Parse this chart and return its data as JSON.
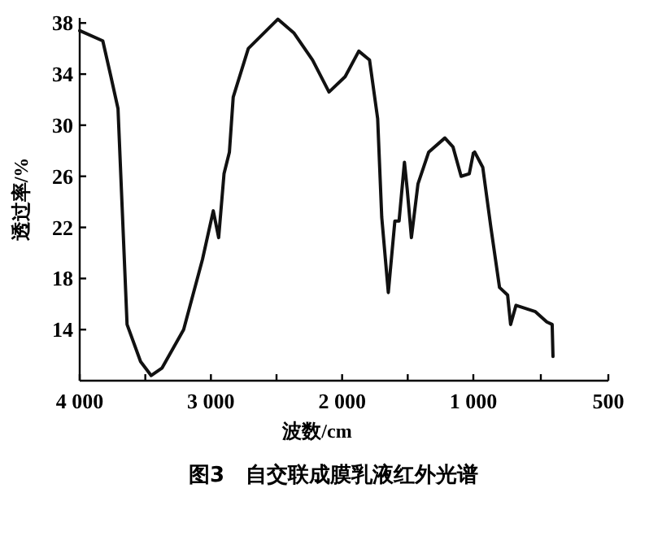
{
  "chart_data": [
    {
      "type": "line",
      "title": "图3　自交联成膜乳液红外光谱",
      "xlabel": "波数/cm",
      "ylabel": "透过率/%",
      "xlim": [
        4000,
        1000
      ],
      "ylim": [
        10,
        38.4
      ],
      "xticks": [
        {
          "value": 4000,
          "label": "4 000"
        },
        {
          "value": 3500,
          "label": null
        },
        {
          "value": 3000,
          "label": "3 000"
        },
        {
          "value": 2500,
          "label": null
        },
        {
          "value": 2000,
          "label": "2 000"
        },
        {
          "value": 1500,
          "label": null
        }
      ],
      "yticks": [
        14,
        18,
        22,
        26,
        30,
        34,
        38
      ],
      "line_style": "solid",
      "series": [
        {
          "color": "#111111",
          "x": [
            4000,
            3824,
            3762,
            3708,
            3639,
            3536,
            3455,
            3372,
            3208,
            3064,
            2982,
            2941,
            2900,
            2859,
            2830,
            2715,
            2490,
            2366,
            2225,
            2100,
            1977,
            1873,
            1791,
            1729,
            1698,
            1648,
            1598,
            1566,
            1525,
            1504,
            1472,
            1422,
            1340,
            1217,
            1155,
            1093,
            1031,
            1000
          ],
          "values": [
            37.4,
            36.6,
            33.8,
            31.3,
            14.4,
            11.5,
            10.4,
            11.0,
            14.0,
            19.5,
            23.3,
            21.2,
            26.2,
            27.9,
            32.2,
            36.0,
            38.3,
            37.2,
            35.1,
            32.6,
            33.8,
            35.8,
            35.1,
            30.5,
            22.8,
            16.9,
            22.5,
            22.5,
            27.1,
            25.0,
            21.2,
            25.4,
            27.9,
            29.0,
            28.3,
            26.0,
            26.2,
            27.8
          ]
        }
      ]
    },
    {
      "type": "line",
      "xlim": [
        1000,
        500
      ],
      "ylim": [
        10,
        38
      ],
      "yticks": [
        14,
        18,
        22,
        26,
        30,
        34,
        38
      ],
      "tick_labels": "x",
      "xticks": [
        {
          "value": 1000,
          "label": "1 000"
        },
        {
          "value": 750,
          "label": null
        },
        500
      ],
      "line_style": "solid",
      "series": [
        {
          "color": "#111111",
          "x": [
            1000,
            995,
            965,
            935,
            903,
            873,
            862,
            842,
            770,
            728,
            708,
            705
          ],
          "values": [
            27.8,
            27.9,
            26.7,
            22.0,
            17.3,
            16.7,
            14.4,
            15.9,
            15.4,
            14.6,
            14.4,
            11.9
          ]
        }
      ]
    }
  ]
}
